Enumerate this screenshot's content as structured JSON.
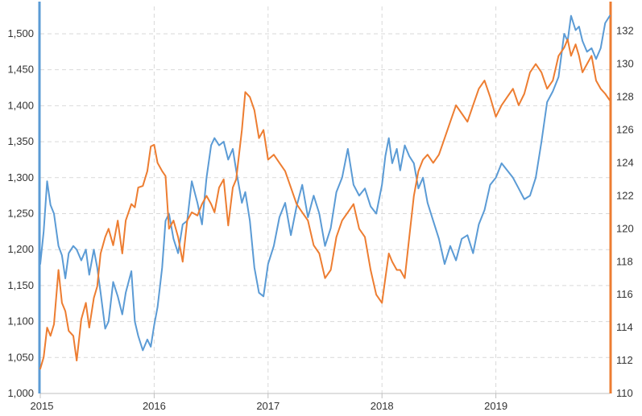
{
  "chart_data": {
    "type": "line",
    "title": "",
    "xlabel": "",
    "ylabel": "",
    "y2label": "",
    "grid": true,
    "legend": "none",
    "x_ticks": [
      "2015",
      "2016",
      "2017",
      "2018",
      "2019"
    ],
    "x_tick_values": [
      2015.0,
      2016.0,
      2017.0,
      2018.0,
      2019.0
    ],
    "xlim": [
      2015.0,
      2020.0
    ],
    "y_ticks": [
      "1,000",
      "1,050",
      "1,100",
      "1,150",
      "1,200",
      "1,250",
      "1,300",
      "1,350",
      "1,400",
      "1,450",
      "1,500"
    ],
    "y_tick_values": [
      1000,
      1050,
      1100,
      1150,
      1200,
      1250,
      1300,
      1350,
      1400,
      1450,
      1500
    ],
    "ylim": [
      1000,
      1538
    ],
    "y2_ticks": [
      "110",
      "112",
      "114",
      "116",
      "118",
      "120",
      "122",
      "124",
      "126",
      "128",
      "130",
      "132"
    ],
    "y2_tick_values": [
      110,
      112,
      114,
      116,
      118,
      120,
      122,
      124,
      126,
      128,
      130,
      132
    ],
    "y2lim": [
      110,
      133.5
    ],
    "series": [
      {
        "axis": "left",
        "color": "#5b9bd5",
        "x": [
          2015.0,
          2015.03,
          2015.06,
          2015.09,
          2015.12,
          2015.16,
          2015.19,
          2015.22,
          2015.25,
          2015.29,
          2015.32,
          2015.36,
          2015.4,
          2015.43,
          2015.47,
          2015.5,
          2015.53,
          2015.57,
          2015.6,
          2015.64,
          2015.68,
          2015.72,
          2015.75,
          2015.8,
          2015.83,
          2015.86,
          2015.9,
          2015.94,
          2015.97,
          2016.0,
          2016.03,
          2016.07,
          2016.1,
          2016.13,
          2016.17,
          2016.21,
          2016.25,
          2016.29,
          2016.33,
          2016.38,
          2016.42,
          2016.46,
          2016.5,
          2016.53,
          2016.57,
          2016.61,
          2016.65,
          2016.69,
          2016.72,
          2016.77,
          2016.8,
          2016.84,
          2016.88,
          2016.92,
          2016.96,
          2017.0,
          2017.05,
          2017.1,
          2017.15,
          2017.2,
          2017.25,
          2017.3,
          2017.35,
          2017.4,
          2017.45,
          2017.5,
          2017.55,
          2017.6,
          2017.65,
          2017.7,
          2017.75,
          2017.8,
          2017.85,
          2017.9,
          2017.95,
          2018.0,
          2018.03,
          2018.06,
          2018.09,
          2018.13,
          2018.16,
          2018.2,
          2018.24,
          2018.28,
          2018.32,
          2018.36,
          2018.4,
          2018.45,
          2018.5,
          2018.55,
          2018.6,
          2018.65,
          2018.7,
          2018.75,
          2018.8,
          2018.85,
          2018.9,
          2018.95,
          2019.0,
          2019.05,
          2019.1,
          2019.15,
          2019.2,
          2019.25,
          2019.3,
          2019.35,
          2019.4,
          2019.45,
          2019.5,
          2019.55,
          2019.6,
          2019.63,
          2019.66,
          2019.7,
          2019.73,
          2019.76,
          2019.8,
          2019.84,
          2019.88,
          2019.92,
          2019.96,
          2020.0
        ],
        "values": [
          1180,
          1225,
          1295,
          1262,
          1250,
          1205,
          1192,
          1160,
          1195,
          1205,
          1200,
          1185,
          1200,
          1165,
          1200,
          1175,
          1140,
          1090,
          1100,
          1155,
          1135,
          1110,
          1140,
          1170,
          1100,
          1080,
          1060,
          1075,
          1065,
          1095,
          1120,
          1175,
          1240,
          1250,
          1215,
          1195,
          1235,
          1240,
          1295,
          1265,
          1235,
          1300,
          1345,
          1355,
          1345,
          1350,
          1325,
          1340,
          1310,
          1265,
          1280,
          1240,
          1175,
          1140,
          1135,
          1180,
          1205,
          1245,
          1265,
          1220,
          1260,
          1290,
          1245,
          1275,
          1250,
          1205,
          1230,
          1280,
          1300,
          1340,
          1290,
          1275,
          1285,
          1260,
          1250,
          1290,
          1330,
          1355,
          1320,
          1340,
          1310,
          1345,
          1330,
          1320,
          1285,
          1300,
          1265,
          1240,
          1215,
          1180,
          1205,
          1185,
          1215,
          1220,
          1195,
          1235,
          1255,
          1290,
          1300,
          1320,
          1310,
          1300,
          1285,
          1270,
          1275,
          1300,
          1350,
          1405,
          1420,
          1440,
          1500,
          1490,
          1525,
          1505,
          1510,
          1490,
          1475,
          1480,
          1465,
          1480,
          1515,
          1525
        ]
      },
      {
        "axis": "right",
        "color": "#ed7d31",
        "x": [
          2015.0,
          2015.03,
          2015.06,
          2015.09,
          2015.12,
          2015.16,
          2015.19,
          2015.22,
          2015.25,
          2015.29,
          2015.32,
          2015.36,
          2015.4,
          2015.43,
          2015.47,
          2015.5,
          2015.53,
          2015.57,
          2015.6,
          2015.64,
          2015.68,
          2015.72,
          2015.75,
          2015.8,
          2015.83,
          2015.86,
          2015.9,
          2015.94,
          2015.97,
          2016.0,
          2016.03,
          2016.07,
          2016.1,
          2016.13,
          2016.17,
          2016.21,
          2016.25,
          2016.29,
          2016.33,
          2016.38,
          2016.42,
          2016.46,
          2016.5,
          2016.53,
          2016.57,
          2016.61,
          2016.65,
          2016.69,
          2016.72,
          2016.77,
          2016.8,
          2016.84,
          2016.88,
          2016.92,
          2016.96,
          2017.0,
          2017.05,
          2017.1,
          2017.15,
          2017.2,
          2017.25,
          2017.3,
          2017.35,
          2017.4,
          2017.45,
          2017.5,
          2017.55,
          2017.6,
          2017.65,
          2017.7,
          2017.75,
          2017.8,
          2017.85,
          2017.9,
          2017.95,
          2018.0,
          2018.03,
          2018.06,
          2018.09,
          2018.13,
          2018.16,
          2018.2,
          2018.24,
          2018.28,
          2018.32,
          2018.36,
          2018.4,
          2018.45,
          2018.5,
          2018.55,
          2018.6,
          2018.65,
          2018.7,
          2018.75,
          2018.8,
          2018.85,
          2018.9,
          2018.95,
          2019.0,
          2019.05,
          2019.1,
          2019.15,
          2019.2,
          2019.25,
          2019.3,
          2019.35,
          2019.4,
          2019.45,
          2019.5,
          2019.55,
          2019.6,
          2019.63,
          2019.66,
          2019.7,
          2019.73,
          2019.76,
          2019.8,
          2019.84,
          2019.88,
          2019.92,
          2019.96,
          2020.0
        ],
        "values": [
          111.5,
          112.2,
          114.0,
          113.5,
          114.2,
          117.5,
          115.5,
          115.0,
          113.8,
          113.5,
          112.0,
          114.5,
          115.5,
          114.0,
          115.8,
          116.5,
          118.5,
          119.5,
          120.0,
          119.0,
          120.5,
          118.5,
          120.5,
          121.5,
          121.3,
          122.5,
          122.6,
          123.5,
          125.0,
          125.1,
          124.0,
          123.5,
          123.2,
          120.0,
          120.5,
          119.5,
          118.0,
          120.5,
          121.0,
          120.8,
          121.5,
          122.0,
          121.5,
          121.0,
          122.5,
          123.0,
          120.2,
          122.5,
          123.0,
          126.0,
          128.3,
          128.0,
          127.2,
          125.5,
          126.0,
          124.2,
          124.5,
          124.0,
          123.5,
          122.5,
          121.5,
          121.0,
          120.5,
          119.0,
          118.5,
          117.0,
          117.5,
          119.5,
          120.5,
          121.0,
          121.5,
          120.0,
          119.5,
          117.5,
          116.0,
          115.5,
          117.0,
          118.5,
          118.0,
          117.5,
          117.5,
          117.0,
          119.5,
          122.0,
          123.5,
          124.2,
          124.5,
          124.0,
          124.5,
          125.5,
          126.5,
          127.5,
          127.0,
          126.5,
          127.5,
          128.5,
          129.0,
          128.0,
          126.8,
          127.5,
          128.0,
          128.5,
          127.5,
          128.2,
          129.5,
          130.0,
          129.5,
          128.5,
          129.0,
          130.5,
          131.0,
          131.5,
          130.5,
          131.2,
          130.5,
          129.5,
          130.0,
          130.5,
          129.0,
          128.5,
          128.2,
          127.8
        ]
      }
    ],
    "colors": {
      "left_axis": "#5b9bd5",
      "right_axis": "#ed7d31",
      "grid": "#d9d9d9"
    }
  }
}
